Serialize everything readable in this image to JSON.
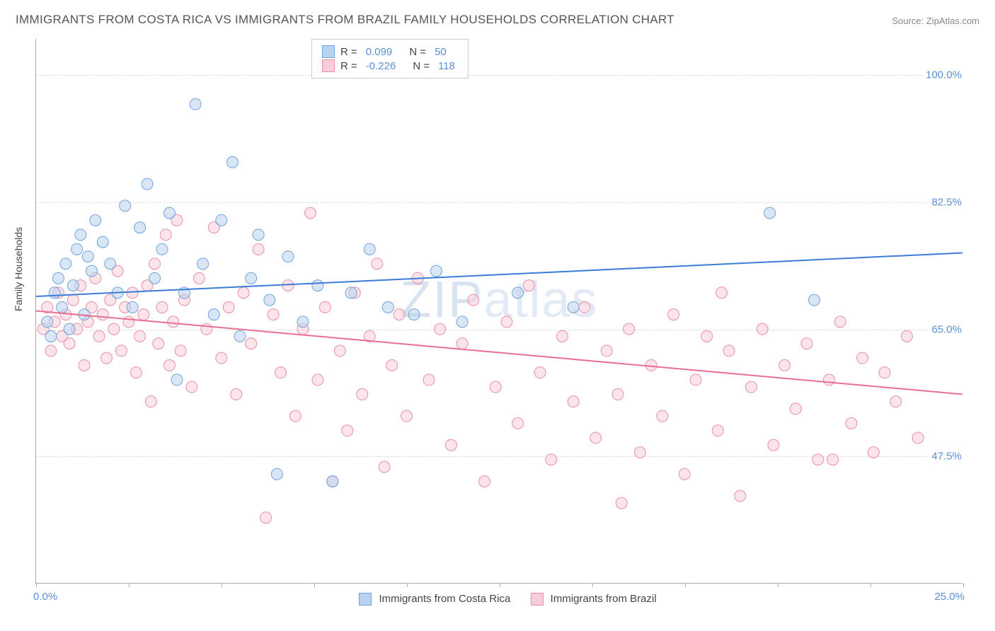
{
  "title": "IMMIGRANTS FROM COSTA RICA VS IMMIGRANTS FROM BRAZIL FAMILY HOUSEHOLDS CORRELATION CHART",
  "source": "Source: ZipAtlas.com",
  "watermark_a": "ZIP",
  "watermark_b": "atlas",
  "axis": {
    "y_title": "Family Households",
    "x_min": 0.0,
    "x_max": 25.0,
    "y_min": 30.0,
    "y_max": 105.0,
    "y_ticks": [
      47.5,
      65.0,
      82.5,
      100.0
    ],
    "y_tick_labels": [
      "47.5%",
      "65.0%",
      "82.5%",
      "100.0%"
    ],
    "x_ticks": [
      0,
      2.5,
      5,
      7.5,
      10,
      12.5,
      15,
      17.5,
      20,
      22.5,
      25
    ],
    "x_label_left": "0.0%",
    "x_label_right": "25.0%"
  },
  "colors": {
    "series_a_fill": "#b9d2ef",
    "series_a_stroke": "#6fa3dd",
    "series_a_line": "#3b7dd8",
    "series_b_fill": "#f7cdd9",
    "series_b_stroke": "#e98fa8",
    "series_b_line": "#e86f93",
    "tick_text": "#5b8fd6",
    "grid": "#dddddd",
    "axis_line": "#aaaaaa"
  },
  "legend_top": {
    "rows": [
      {
        "swatch": "a",
        "r_label": "R =",
        "r_val": "0.099",
        "n_label": "N =",
        "n_val": "50"
      },
      {
        "swatch": "b",
        "r_label": "R =",
        "r_val": "-0.226",
        "n_label": "N =",
        "n_val": "118"
      }
    ]
  },
  "legend_bottom": {
    "items": [
      {
        "swatch": "a",
        "label": "Immigrants from Costa Rica"
      },
      {
        "swatch": "b",
        "label": "Immigrants from Brazil"
      }
    ]
  },
  "styling": {
    "marker_radius": 8,
    "marker_opacity": 0.55,
    "line_width": 2,
    "title_fontsize": 17,
    "tick_fontsize": 15
  },
  "series_a": {
    "name": "Immigrants from Costa Rica",
    "trend": {
      "x1": 0,
      "y1": 69.5,
      "x2": 25,
      "y2": 75.5
    },
    "points": [
      [
        0.3,
        66
      ],
      [
        0.4,
        64
      ],
      [
        0.5,
        70
      ],
      [
        0.6,
        72
      ],
      [
        0.7,
        68
      ],
      [
        0.8,
        74
      ],
      [
        0.9,
        65
      ],
      [
        1.0,
        71
      ],
      [
        1.1,
        76
      ],
      [
        1.2,
        78
      ],
      [
        1.3,
        67
      ],
      [
        1.4,
        75
      ],
      [
        1.5,
        73
      ],
      [
        1.6,
        80
      ],
      [
        1.8,
        77
      ],
      [
        2.0,
        74
      ],
      [
        2.2,
        70
      ],
      [
        2.4,
        82
      ],
      [
        2.6,
        68
      ],
      [
        2.8,
        79
      ],
      [
        3.0,
        85
      ],
      [
        3.2,
        72
      ],
      [
        3.4,
        76
      ],
      [
        3.6,
        81
      ],
      [
        3.8,
        58
      ],
      [
        4.0,
        70
      ],
      [
        4.3,
        96
      ],
      [
        4.5,
        74
      ],
      [
        4.8,
        67
      ],
      [
        5.0,
        80
      ],
      [
        5.3,
        88
      ],
      [
        5.5,
        64
      ],
      [
        5.8,
        72
      ],
      [
        6.0,
        78
      ],
      [
        6.3,
        69
      ],
      [
        6.5,
        45
      ],
      [
        6.8,
        75
      ],
      [
        7.2,
        66
      ],
      [
        7.6,
        71
      ],
      [
        8.0,
        44
      ],
      [
        8.5,
        70
      ],
      [
        9.0,
        76
      ],
      [
        9.5,
        68
      ],
      [
        10.2,
        67
      ],
      [
        10.8,
        73
      ],
      [
        11.5,
        66
      ],
      [
        13.0,
        70
      ],
      [
        14.5,
        68
      ],
      [
        19.8,
        81
      ],
      [
        21.0,
        69
      ]
    ]
  },
  "series_b": {
    "name": "Immigrants from Brazil",
    "trend": {
      "x1": 0,
      "y1": 67.5,
      "x2": 25,
      "y2": 56.0
    },
    "points": [
      [
        0.2,
        65
      ],
      [
        0.3,
        68
      ],
      [
        0.4,
        62
      ],
      [
        0.5,
        66
      ],
      [
        0.6,
        70
      ],
      [
        0.7,
        64
      ],
      [
        0.8,
        67
      ],
      [
        0.9,
        63
      ],
      [
        1.0,
        69
      ],
      [
        1.1,
        65
      ],
      [
        1.2,
        71
      ],
      [
        1.3,
        60
      ],
      [
        1.4,
        66
      ],
      [
        1.5,
        68
      ],
      [
        1.6,
        72
      ],
      [
        1.7,
        64
      ],
      [
        1.8,
        67
      ],
      [
        1.9,
        61
      ],
      [
        2.0,
        69
      ],
      [
        2.1,
        65
      ],
      [
        2.2,
        73
      ],
      [
        2.3,
        62
      ],
      [
        2.4,
        68
      ],
      [
        2.5,
        66
      ],
      [
        2.6,
        70
      ],
      [
        2.7,
        59
      ],
      [
        2.8,
        64
      ],
      [
        2.9,
        67
      ],
      [
        3.0,
        71
      ],
      [
        3.1,
        55
      ],
      [
        3.2,
        74
      ],
      [
        3.3,
        63
      ],
      [
        3.4,
        68
      ],
      [
        3.5,
        78
      ],
      [
        3.6,
        60
      ],
      [
        3.7,
        66
      ],
      [
        3.8,
        80
      ],
      [
        3.9,
        62
      ],
      [
        4.0,
        69
      ],
      [
        4.2,
        57
      ],
      [
        4.4,
        72
      ],
      [
        4.6,
        65
      ],
      [
        4.8,
        79
      ],
      [
        5.0,
        61
      ],
      [
        5.2,
        68
      ],
      [
        5.4,
        56
      ],
      [
        5.6,
        70
      ],
      [
        5.8,
        63
      ],
      [
        6.0,
        76
      ],
      [
        6.2,
        39
      ],
      [
        6.4,
        67
      ],
      [
        6.6,
        59
      ],
      [
        6.8,
        71
      ],
      [
        7.0,
        53
      ],
      [
        7.2,
        65
      ],
      [
        7.4,
        81
      ],
      [
        7.6,
        58
      ],
      [
        7.8,
        68
      ],
      [
        8.0,
        44
      ],
      [
        8.2,
        62
      ],
      [
        8.4,
        51
      ],
      [
        8.6,
        70
      ],
      [
        8.8,
        56
      ],
      [
        9.0,
        64
      ],
      [
        9.2,
        74
      ],
      [
        9.4,
        46
      ],
      [
        9.6,
        60
      ],
      [
        9.8,
        67
      ],
      [
        10.0,
        53
      ],
      [
        10.3,
        72
      ],
      [
        10.6,
        58
      ],
      [
        10.9,
        65
      ],
      [
        11.2,
        49
      ],
      [
        11.5,
        63
      ],
      [
        11.8,
        69
      ],
      [
        12.1,
        44
      ],
      [
        12.4,
        57
      ],
      [
        12.7,
        66
      ],
      [
        13.0,
        52
      ],
      [
        13.3,
        71
      ],
      [
        13.6,
        59
      ],
      [
        13.9,
        47
      ],
      [
        14.2,
        64
      ],
      [
        14.5,
        55
      ],
      [
        14.8,
        68
      ],
      [
        15.1,
        50
      ],
      [
        15.4,
        62
      ],
      [
        15.7,
        56
      ],
      [
        16.0,
        65
      ],
      [
        16.3,
        48
      ],
      [
        16.6,
        60
      ],
      [
        16.9,
        53
      ],
      [
        17.2,
        67
      ],
      [
        17.5,
        45
      ],
      [
        17.8,
        58
      ],
      [
        18.1,
        64
      ],
      [
        18.4,
        51
      ],
      [
        18.7,
        62
      ],
      [
        19.0,
        42
      ],
      [
        19.3,
        57
      ],
      [
        19.6,
        65
      ],
      [
        19.9,
        49
      ],
      [
        20.2,
        60
      ],
      [
        20.5,
        54
      ],
      [
        20.8,
        63
      ],
      [
        21.1,
        47
      ],
      [
        21.4,
        58
      ],
      [
        21.7,
        66
      ],
      [
        22.0,
        52
      ],
      [
        22.3,
        61
      ],
      [
        22.6,
        48
      ],
      [
        22.9,
        59
      ],
      [
        23.2,
        55
      ],
      [
        23.5,
        64
      ],
      [
        23.8,
        50
      ],
      [
        18.5,
        70
      ],
      [
        15.8,
        41
      ],
      [
        21.5,
        47
      ]
    ]
  }
}
